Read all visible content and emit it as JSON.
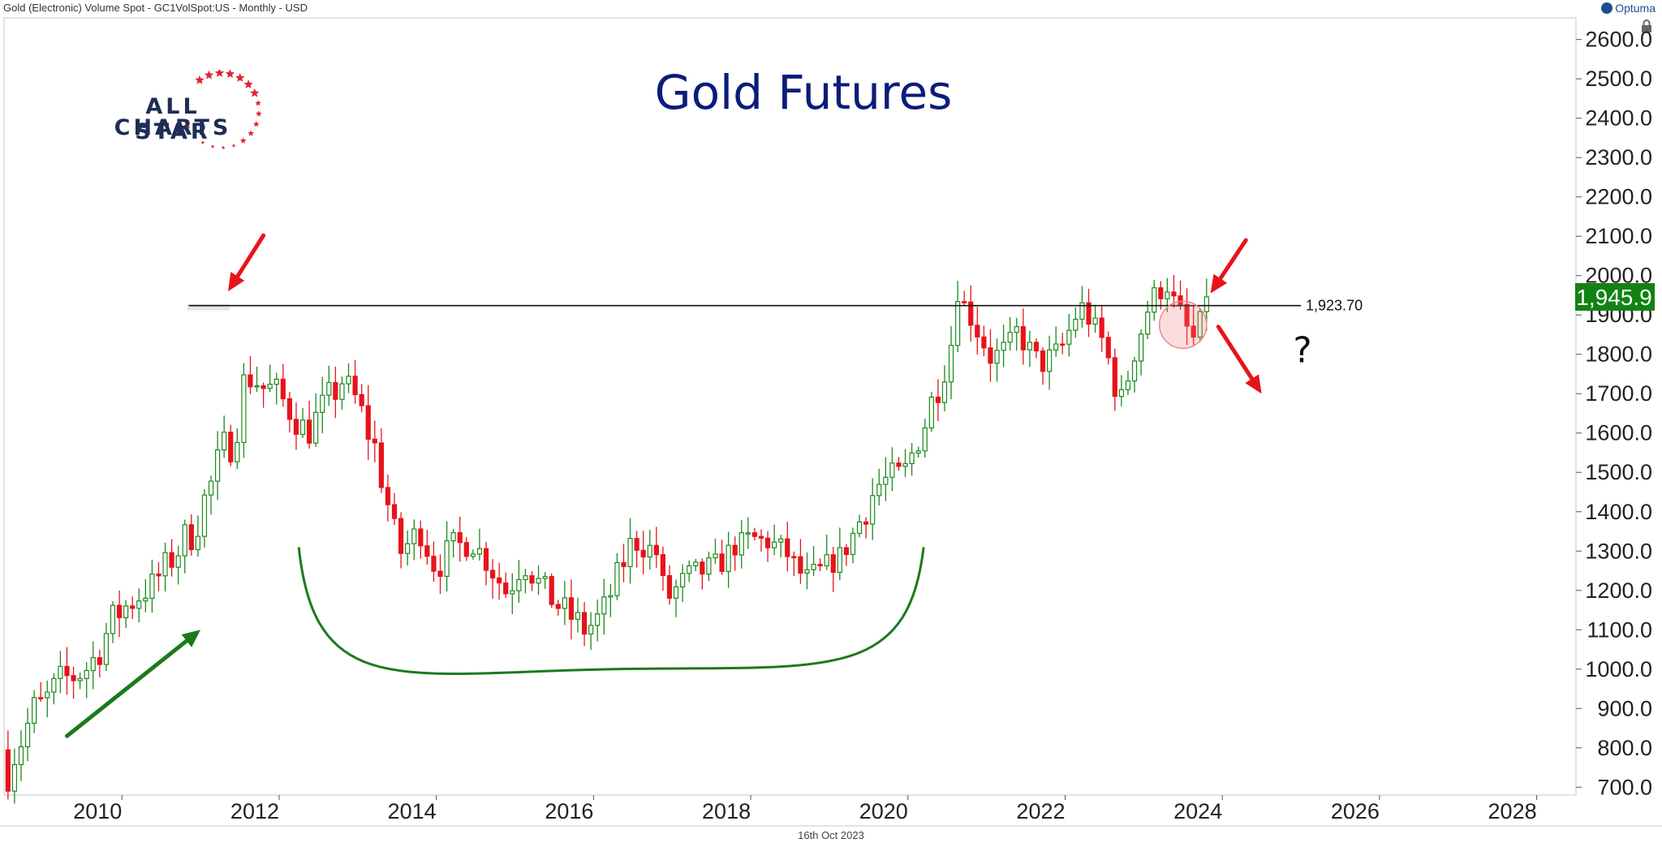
{
  "header": {
    "instrument": "Gold (Electronic) Volume Spot - GC1VolSpot:US - Monthly - USD"
  },
  "brand": {
    "name": "Optuma"
  },
  "logo": {
    "line1": "ALL STAR",
    "line2": "CHARTS"
  },
  "footer": {
    "date": "16th Oct 2023"
  },
  "colors": {
    "up": "#1a8a1a",
    "down": "#e8131a",
    "title": "#0b1c7a",
    "price_badge": "#128212",
    "arc": "#1b7a1b"
  },
  "chart_data": {
    "type": "candlestick",
    "title": "Gold Futures",
    "frequency": "Monthly",
    "currency": "USD",
    "x_ticks": [
      "2010",
      "2012",
      "2014",
      "2016",
      "2018",
      "2020",
      "2022",
      "2024",
      "2026",
      "2028"
    ],
    "y_ticks": [
      "700.0",
      "800.0",
      "900.0",
      "1000.0",
      "1100.0",
      "1200.0",
      "1300.0",
      "1400.0",
      "1500.0",
      "1600.0",
      "1700.0",
      "1800.0",
      "1900.0",
      "2000.0",
      "2100.0",
      "2200.0",
      "2300.0",
      "2400.0",
      "2500.0",
      "2600.0"
    ],
    "x_range": [
      2008.5,
      2028.5
    ],
    "y_range": [
      680,
      2655
    ],
    "last_price": 1945.9,
    "last_price_label": "1,945.9",
    "resistance": {
      "value": 1923.7,
      "label": "1,923.70",
      "from": 2010.85,
      "to": 2025.0
    },
    "annotations": [
      {
        "kind": "arrow",
        "color": "red",
        "from": [
          2011.8,
          2102
        ],
        "to": [
          2011.35,
          1960
        ]
      },
      {
        "kind": "arrow",
        "color": "red",
        "from": [
          2024.3,
          2090
        ],
        "to": [
          2023.85,
          1955
        ]
      },
      {
        "kind": "arrow",
        "color": "red",
        "from": [
          2023.95,
          1870
        ],
        "to": [
          2024.5,
          1700
        ]
      },
      {
        "kind": "arrow",
        "color": "green",
        "from": [
          2009.3,
          830
        ],
        "to": [
          2011.0,
          1100
        ]
      },
      {
        "kind": "text",
        "text": "?",
        "at": [
          2024.9,
          1780
        ]
      },
      {
        "kind": "circle",
        "center": [
          2023.5,
          1875
        ],
        "radius_years": 0.3
      },
      {
        "kind": "arc",
        "from": [
          2012.25,
          1310
        ],
        "bottom": [
          2016.25,
          1000
        ],
        "to": [
          2020.2,
          1310
        ]
      }
    ],
    "anchors": [
      [
        2008.55,
        670,
        920
      ],
      [
        2009.3,
        920,
        1030
      ],
      [
        2009.6,
        960,
        1060
      ],
      [
        2009.92,
        1095,
        1180
      ],
      [
        2010.4,
        1190,
        1245
      ],
      [
        2010.9,
        1300,
        1410
      ],
      [
        2011.3,
        1470,
        1620
      ],
      [
        2011.66,
        1680,
        1880
      ],
      [
        2011.75,
        1620,
        1820
      ],
      [
        2012.0,
        1660,
        1730
      ],
      [
        2012.35,
        1560,
        1640
      ],
      [
        2012.8,
        1690,
        1780
      ],
      [
        2013.0,
        1660,
        1700
      ],
      [
        2013.3,
        1420,
        1600
      ],
      [
        2013.5,
        1230,
        1350
      ],
      [
        2013.8,
        1320,
        1380
      ],
      [
        2014.0,
        1220,
        1290
      ],
      [
        2014.2,
        1290,
        1340
      ],
      [
        2014.5,
        1300,
        1330
      ],
      [
        2014.9,
        1160,
        1230
      ],
      [
        2015.1,
        1250,
        1290
      ],
      [
        2015.5,
        1140,
        1200
      ],
      [
        2015.9,
        1060,
        1140
      ],
      [
        2016.1,
        1100,
        1170
      ],
      [
        2016.5,
        1300,
        1360
      ],
      [
        2016.8,
        1270,
        1320
      ],
      [
        2016.92,
        1150,
        1200
      ],
      [
        2017.2,
        1210,
        1260
      ],
      [
        2017.6,
        1240,
        1290
      ],
      [
        2017.75,
        1290,
        1320
      ],
      [
        2018.0,
        1320,
        1350
      ],
      [
        2018.4,
        1300,
        1320
      ],
      [
        2018.7,
        1200,
        1250
      ],
      [
        2018.92,
        1220,
        1280
      ],
      [
        2019.2,
        1290,
        1310
      ],
      [
        2019.6,
        1410,
        1520
      ],
      [
        2019.95,
        1480,
        1520
      ],
      [
        2020.2,
        1580,
        1650
      ],
      [
        2020.55,
        1770,
        1900
      ],
      [
        2020.6,
        1960,
        1990
      ],
      [
        2020.8,
        1880,
        1900
      ],
      [
        2021.1,
        1730,
        1840
      ],
      [
        2021.4,
        1900,
        1810
      ],
      [
        2021.7,
        1750,
        1800
      ],
      [
        2021.95,
        1800,
        1830
      ],
      [
        2022.2,
        1910,
        1940
      ],
      [
        2022.5,
        1800,
        1850
      ],
      [
        2022.7,
        1640,
        1700
      ],
      [
        2022.9,
        1800,
        1830
      ],
      [
        2023.1,
        1930,
        1960
      ],
      [
        2023.3,
        1960,
        1990
      ],
      [
        2023.5,
        1920,
        1850
      ],
      [
        2023.62,
        1830,
        1840
      ],
      [
        2023.79,
        1850,
        1945.9
      ]
    ]
  }
}
